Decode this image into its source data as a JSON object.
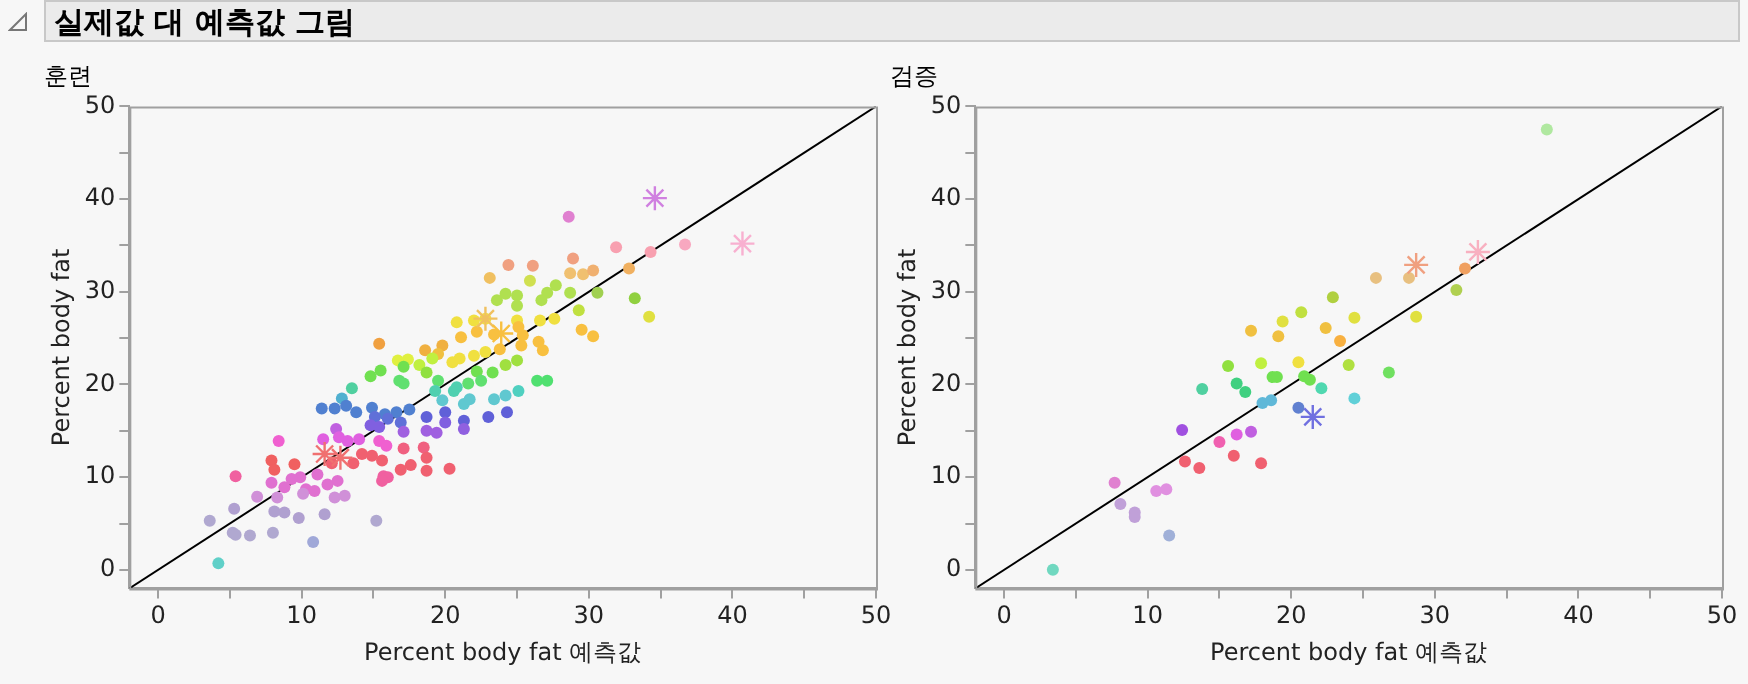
{
  "chart_data": [
    {
      "type": "scatter",
      "title": "실제값 대 예측값 그림",
      "subtitle": "훈련",
      "xlabel": "Percent body fat 예측값",
      "ylabel": "Percent body fat",
      "xlim": [
        -2,
        50
      ],
      "ylim": [
        -2,
        50
      ],
      "xticks": [
        0,
        {
          "value": 5,
          "label": null
        },
        10,
        {
          "value": 15,
          "label": null
        },
        20,
        {
          "value": 25,
          "label": null
        },
        30,
        {
          "value": 35,
          "label": null
        },
        40,
        {
          "value": 45,
          "label": null
        },
        50
      ],
      "yticks": [
        0,
        {
          "value": 5,
          "label": null
        },
        10,
        {
          "value": 15,
          "label": null
        },
        20,
        {
          "value": 25,
          "label": null
        },
        30,
        {
          "value": 35,
          "label": null
        },
        40,
        {
          "value": 45,
          "label": null
        },
        50
      ],
      "grid": false,
      "legend": false,
      "series": [
        {
          "type": "scatter",
          "marker": "circle",
          "x": [
            28.6,
            31.9,
            34.3,
            36.7,
            28.9,
            24.4,
            26.1,
            28.7,
            29.6,
            30.3,
            32.8,
            23.1,
            25.9,
            27.7,
            24.2,
            25.0,
            27.1,
            28.7,
            30.6,
            33.2,
            23.6,
            25.0,
            26.7,
            29.3,
            34.2,
            20.8,
            22.0,
            22.8,
            25.0,
            26.6,
            27.6,
            29.5,
            30.3,
            21.1,
            22.2,
            23.4,
            25.1,
            25.4,
            26.5,
            26.8,
            23.8,
            25.3,
            15.4,
            18.6,
            19.8,
            19.5,
            20.5,
            21.0,
            22.0,
            22.8,
            16.7,
            17.4,
            18.2,
            19.1,
            18.7,
            17.1,
            14.8,
            15.5,
            24.2,
            25.0,
            23.3,
            22.2,
            16.8,
            17.1,
            19.5,
            26.4,
            27.1,
            21.6,
            22.5,
            13.5,
            19.3,
            20.6,
            20.8,
            19.8,
            21.3,
            21.7,
            23.4,
            24.2,
            25.1,
            12.8,
            11.4,
            12.3,
            13.1,
            14.9,
            13.8,
            15.8,
            16.6,
            17.5,
            15.1,
            16.0,
            16.9,
            18.7,
            20.0,
            21.3,
            23.0,
            24.3,
            14.8,
            15.4,
            20.0,
            21.3,
            18.7,
            19.4,
            17.1,
            12.4,
            12.6,
            11.5,
            13.2,
            14.0,
            8.4,
            15.4,
            15.9,
            17.1,
            18.5,
            14.2,
            14.9,
            15.6,
            13.6,
            12.1,
            18.7,
            7.9,
            9.5,
            8.1,
            16.9,
            17.6,
            18.7,
            20.3,
            5.4,
            15.7,
            16.0,
            15.6,
            9.9,
            11.1,
            12.5,
            9.3,
            7.9,
            8.8,
            10.3,
            10.9,
            11.8,
            6.9,
            8.3,
            10.1,
            12.3,
            13.0,
            5.3,
            8.1,
            8.8,
            9.8,
            11.6,
            3.6,
            5.2,
            5.4,
            6.4,
            8.0,
            15.2,
            10.8,
            4.2
          ],
          "values": [
            38.1,
            34.8,
            34.3,
            35.1,
            33.6,
            32.9,
            32.8,
            32.0,
            31.9,
            32.3,
            32.5,
            31.5,
            31.2,
            30.7,
            29.8,
            29.6,
            29.9,
            29.9,
            29.9,
            29.3,
            29.1,
            28.5,
            29.1,
            28.0,
            27.3,
            26.7,
            26.9,
            27.1,
            26.9,
            26.9,
            27.1,
            25.9,
            25.2,
            25.1,
            25.7,
            25.4,
            26.2,
            25.3,
            24.6,
            23.7,
            23.8,
            24.2,
            24.4,
            23.7,
            24.2,
            23.3,
            22.4,
            22.8,
            23.1,
            23.5,
            22.6,
            22.7,
            22.1,
            22.8,
            21.3,
            21.9,
            20.9,
            21.5,
            22.1,
            22.6,
            21.3,
            21.4,
            20.4,
            20.1,
            20.4,
            20.4,
            20.4,
            20.1,
            20.4,
            19.6,
            19.3,
            19.3,
            19.7,
            18.3,
            17.9,
            18.4,
            18.4,
            18.8,
            19.3,
            18.5,
            17.4,
            17.4,
            17.7,
            17.5,
            17.0,
            16.8,
            17.0,
            17.3,
            16.5,
            16.3,
            15.9,
            16.5,
            17.0,
            16.1,
            16.5,
            17.0,
            15.6,
            15.4,
            15.9,
            15.2,
            15.0,
            14.8,
            14.9,
            15.2,
            14.3,
            14.1,
            13.9,
            14.1,
            13.9,
            13.9,
            13.4,
            13.1,
            13.2,
            12.5,
            12.3,
            11.8,
            11.5,
            11.5,
            12.1,
            11.8,
            11.4,
            10.8,
            10.8,
            11.3,
            10.7,
            10.9,
            10.1,
            10.1,
            10.0,
            9.6,
            10.0,
            10.3,
            9.6,
            9.8,
            9.4,
            8.9,
            8.7,
            8.5,
            9.2,
            7.9,
            7.8,
            8.2,
            7.8,
            8.0,
            6.6,
            6.3,
            6.2,
            5.6,
            6.0,
            5.3,
            4.0,
            3.8,
            3.7,
            4.0,
            5.3,
            3.0,
            0.7
          ],
          "colors": [
            "#e080d0",
            "#f8a0b0",
            "#f8a0b0",
            "#f8a8c0",
            "#f0a080",
            "#f0a080",
            "#f0a080",
            "#f0c070",
            "#f0c070",
            "#f0b070",
            "#f0b060",
            "#f0c060",
            "#d0e050",
            "#b0e050",
            "#b0e050",
            "#b0e050",
            "#b0e050",
            "#b0e050",
            "#a0d050",
            "#90d040",
            "#b0e050",
            "#b0e050",
            "#b0e050",
            "#c0e040",
            "#e0e040",
            "#f0e040",
            "#f0e040",
            "#f0e040",
            "#f0e040",
            "#f0e040",
            "#f0e040",
            "#f8c040",
            "#f8c040",
            "#f8c040",
            "#f8c040",
            "#f8c040",
            "#f8c040",
            "#f8c040",
            "#f8c040",
            "#f8c040",
            "#f8c040",
            "#f8c040",
            "#f0a040",
            "#f0b040",
            "#f0b040",
            "#f0c040",
            "#f0e040",
            "#f0e040",
            "#f0e040",
            "#f0e040",
            "#e0f040",
            "#e0f040",
            "#c0f040",
            "#c0f040",
            "#90e040",
            "#70e050",
            "#70e050",
            "#70e050",
            "#a0e040",
            "#a0e040",
            "#70e050",
            "#70e050",
            "#60e070",
            "#60e070",
            "#60e070",
            "#50e070",
            "#50e070",
            "#60e070",
            "#60e070",
            "#50d0a0",
            "#50d0b0",
            "#50d0b0",
            "#50d0b0",
            "#60c8d0",
            "#60c8d0",
            "#60c8d0",
            "#60c8d0",
            "#60c8d0",
            "#50d0c0",
            "#50b0d0",
            "#5080d0",
            "#5080d0",
            "#5080d0",
            "#5080d0",
            "#5080d0",
            "#5080d0",
            "#5080d0",
            "#5080d0",
            "#6070d8",
            "#6070d8",
            "#6070d8",
            "#6060d8",
            "#6060d8",
            "#6060d8",
            "#6060d8",
            "#6060d8",
            "#8060e0",
            "#8060e0",
            "#8060e0",
            "#9060e0",
            "#a060e0",
            "#a060e0",
            "#a060e0",
            "#c060e0",
            "#e060e0",
            "#e060e0",
            "#e060e0",
            "#e060e0",
            "#f060d0",
            "#f060d0",
            "#f060d0",
            "#f06080",
            "#f06080",
            "#f06070",
            "#f06070",
            "#f06070",
            "#f06070",
            "#f06070",
            "#f06070",
            "#f06060",
            "#f06060",
            "#f06060",
            "#f06070",
            "#f06070",
            "#f06070",
            "#f06070",
            "#f060a0",
            "#f060a0",
            "#f060a0",
            "#f060a0",
            "#e070d0",
            "#e070d0",
            "#e070d0",
            "#e070d0",
            "#e070d0",
            "#e070d0",
            "#e070d0",
            "#e070d0",
            "#e070d0",
            "#d090d8",
            "#d090d8",
            "#d090d8",
            "#d090d8",
            "#d090d8",
            "#b0a0d0",
            "#b0a0d0",
            "#b0a0d0",
            "#b0a0d0",
            "#b0a0d0",
            "#b0a8d0",
            "#b0a8d0",
            "#b0a8d0",
            "#b0a8d0",
            "#b0a8d0",
            "#b0a8d0",
            "#a0a8d8",
            "#60d0c8"
          ]
        },
        {
          "type": "scatter",
          "marker": "cross",
          "x": [
            34.6,
            40.7,
            22.8,
            23.9,
            11.6,
            12.7
          ],
          "values": [
            40.1,
            35.2,
            27.1,
            25.5,
            12.5,
            12.1
          ],
          "colors": [
            "#d080e0",
            "#f8b0d0",
            "#f0c060",
            "#f8c040",
            "#f07070",
            "#f07070"
          ]
        },
        {
          "type": "line",
          "marker": "none",
          "color": "#000000",
          "x": [
            -2,
            50
          ],
          "values": [
            -2,
            50
          ]
        }
      ]
    },
    {
      "type": "scatter",
      "subtitle": "검증",
      "xlabel": "Percent body fat 예측값",
      "ylabel": "Percent body fat",
      "xlim": [
        -2,
        50
      ],
      "ylim": [
        -2,
        50
      ],
      "xticks": [
        0,
        {
          "value": 5,
          "label": null
        },
        10,
        {
          "value": 15,
          "label": null
        },
        20,
        {
          "value": 25,
          "label": null
        },
        30,
        {
          "value": 35,
          "label": null
        },
        40,
        {
          "value": 45,
          "label": null
        },
        50
      ],
      "yticks": [
        0,
        {
          "value": 5,
          "label": null
        },
        10,
        {
          "value": 15,
          "label": null
        },
        20,
        {
          "value": 25,
          "label": null
        },
        30,
        {
          "value": 35,
          "label": null
        },
        40,
        {
          "value": 45,
          "label": null
        },
        50
      ],
      "grid": false,
      "legend": false,
      "series": [
        {
          "type": "scatter",
          "marker": "circle",
          "x": [
            37.8,
            32.1,
            25.9,
            28.2,
            31.5,
            22.9,
            24.4,
            28.7,
            20.7,
            19.4,
            17.2,
            19.1,
            22.4,
            23.4,
            20.5,
            17.9,
            15.6,
            24.0,
            18.7,
            19.0,
            20.9,
            21.3,
            26.8,
            16.2,
            16.8,
            13.8,
            22.1,
            18.0,
            18.6,
            24.4,
            20.5,
            12.4,
            17.2,
            16.2,
            15.0,
            16.0,
            12.6,
            13.6,
            17.9,
            7.7,
            10.6,
            11.3,
            8.1,
            9.1,
            9.1,
            11.5,
            3.4
          ],
          "values": [
            47.5,
            32.5,
            31.5,
            31.5,
            30.2,
            29.4,
            27.2,
            27.3,
            27.8,
            26.8,
            25.8,
            25.2,
            26.1,
            24.7,
            22.4,
            22.3,
            22.0,
            22.1,
            20.8,
            20.8,
            20.9,
            20.5,
            21.3,
            20.1,
            19.2,
            19.5,
            19.6,
            18.0,
            18.3,
            18.5,
            17.5,
            15.1,
            14.9,
            14.6,
            13.8,
            12.3,
            11.7,
            11.0,
            11.5,
            9.4,
            8.5,
            8.7,
            7.1,
            6.2,
            5.7,
            3.7,
            0.0
          ],
          "colors": [
            "#b0e8a0",
            "#f0a060",
            "#e8c080",
            "#e8c080",
            "#b0d050",
            "#b0d040",
            "#e0e040",
            "#e0e040",
            "#c0e040",
            "#e0e040",
            "#f0c040",
            "#f0c040",
            "#f0c040",
            "#f8b040",
            "#f0e040",
            "#c0f040",
            "#90e040",
            "#b0e040",
            "#70e050",
            "#70e050",
            "#70e050",
            "#70e050",
            "#70e060",
            "#40d080",
            "#40d080",
            "#50d0a0",
            "#50d8b0",
            "#60b8d8",
            "#60b8d8",
            "#60d0d8",
            "#6080d0",
            "#a050e0",
            "#c060e0",
            "#e060e0",
            "#f060b0",
            "#f06070",
            "#f06070",
            "#f06070",
            "#f06070",
            "#e080d0",
            "#e090e0",
            "#e090e0",
            "#c0a0d8",
            "#c0a0d8",
            "#c0a0d8",
            "#a0b0d8",
            "#70d8c0"
          ]
        },
        {
          "type": "scatter",
          "marker": "cross",
          "x": [
            33.0,
            28.7,
            21.5
          ],
          "values": [
            34.3,
            32.9,
            16.5
          ],
          "colors": [
            "#f8b0c0",
            "#f0a080",
            "#7070e0"
          ]
        },
        {
          "type": "line",
          "marker": "none",
          "color": "#000000",
          "x": [
            -2,
            50
          ],
          "values": [
            -2,
            50
          ]
        }
      ]
    }
  ]
}
